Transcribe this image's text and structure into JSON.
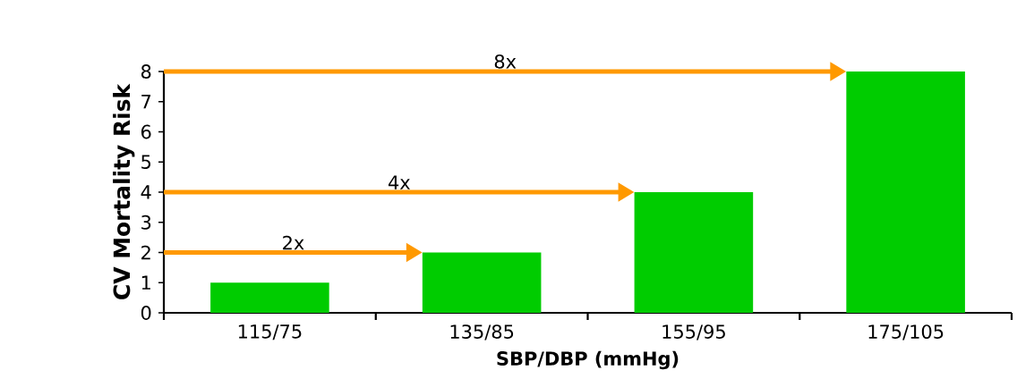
{
  "chart_data": {
    "type": "bar",
    "xlabel": "SBP/DBP (mmHg)",
    "ylabel": "CV Mortality Risk",
    "categories": [
      "115/75",
      "135/85",
      "155/95",
      "175/105"
    ],
    "values": [
      1,
      2,
      4,
      8
    ],
    "color": "#00cc00",
    "ylim": [
      0,
      8
    ],
    "yticks": [
      0,
      1,
      2,
      3,
      4,
      5,
      6,
      7,
      8
    ],
    "grid": false,
    "annotations": [
      "2x",
      "4x",
      "8x"
    ]
  }
}
